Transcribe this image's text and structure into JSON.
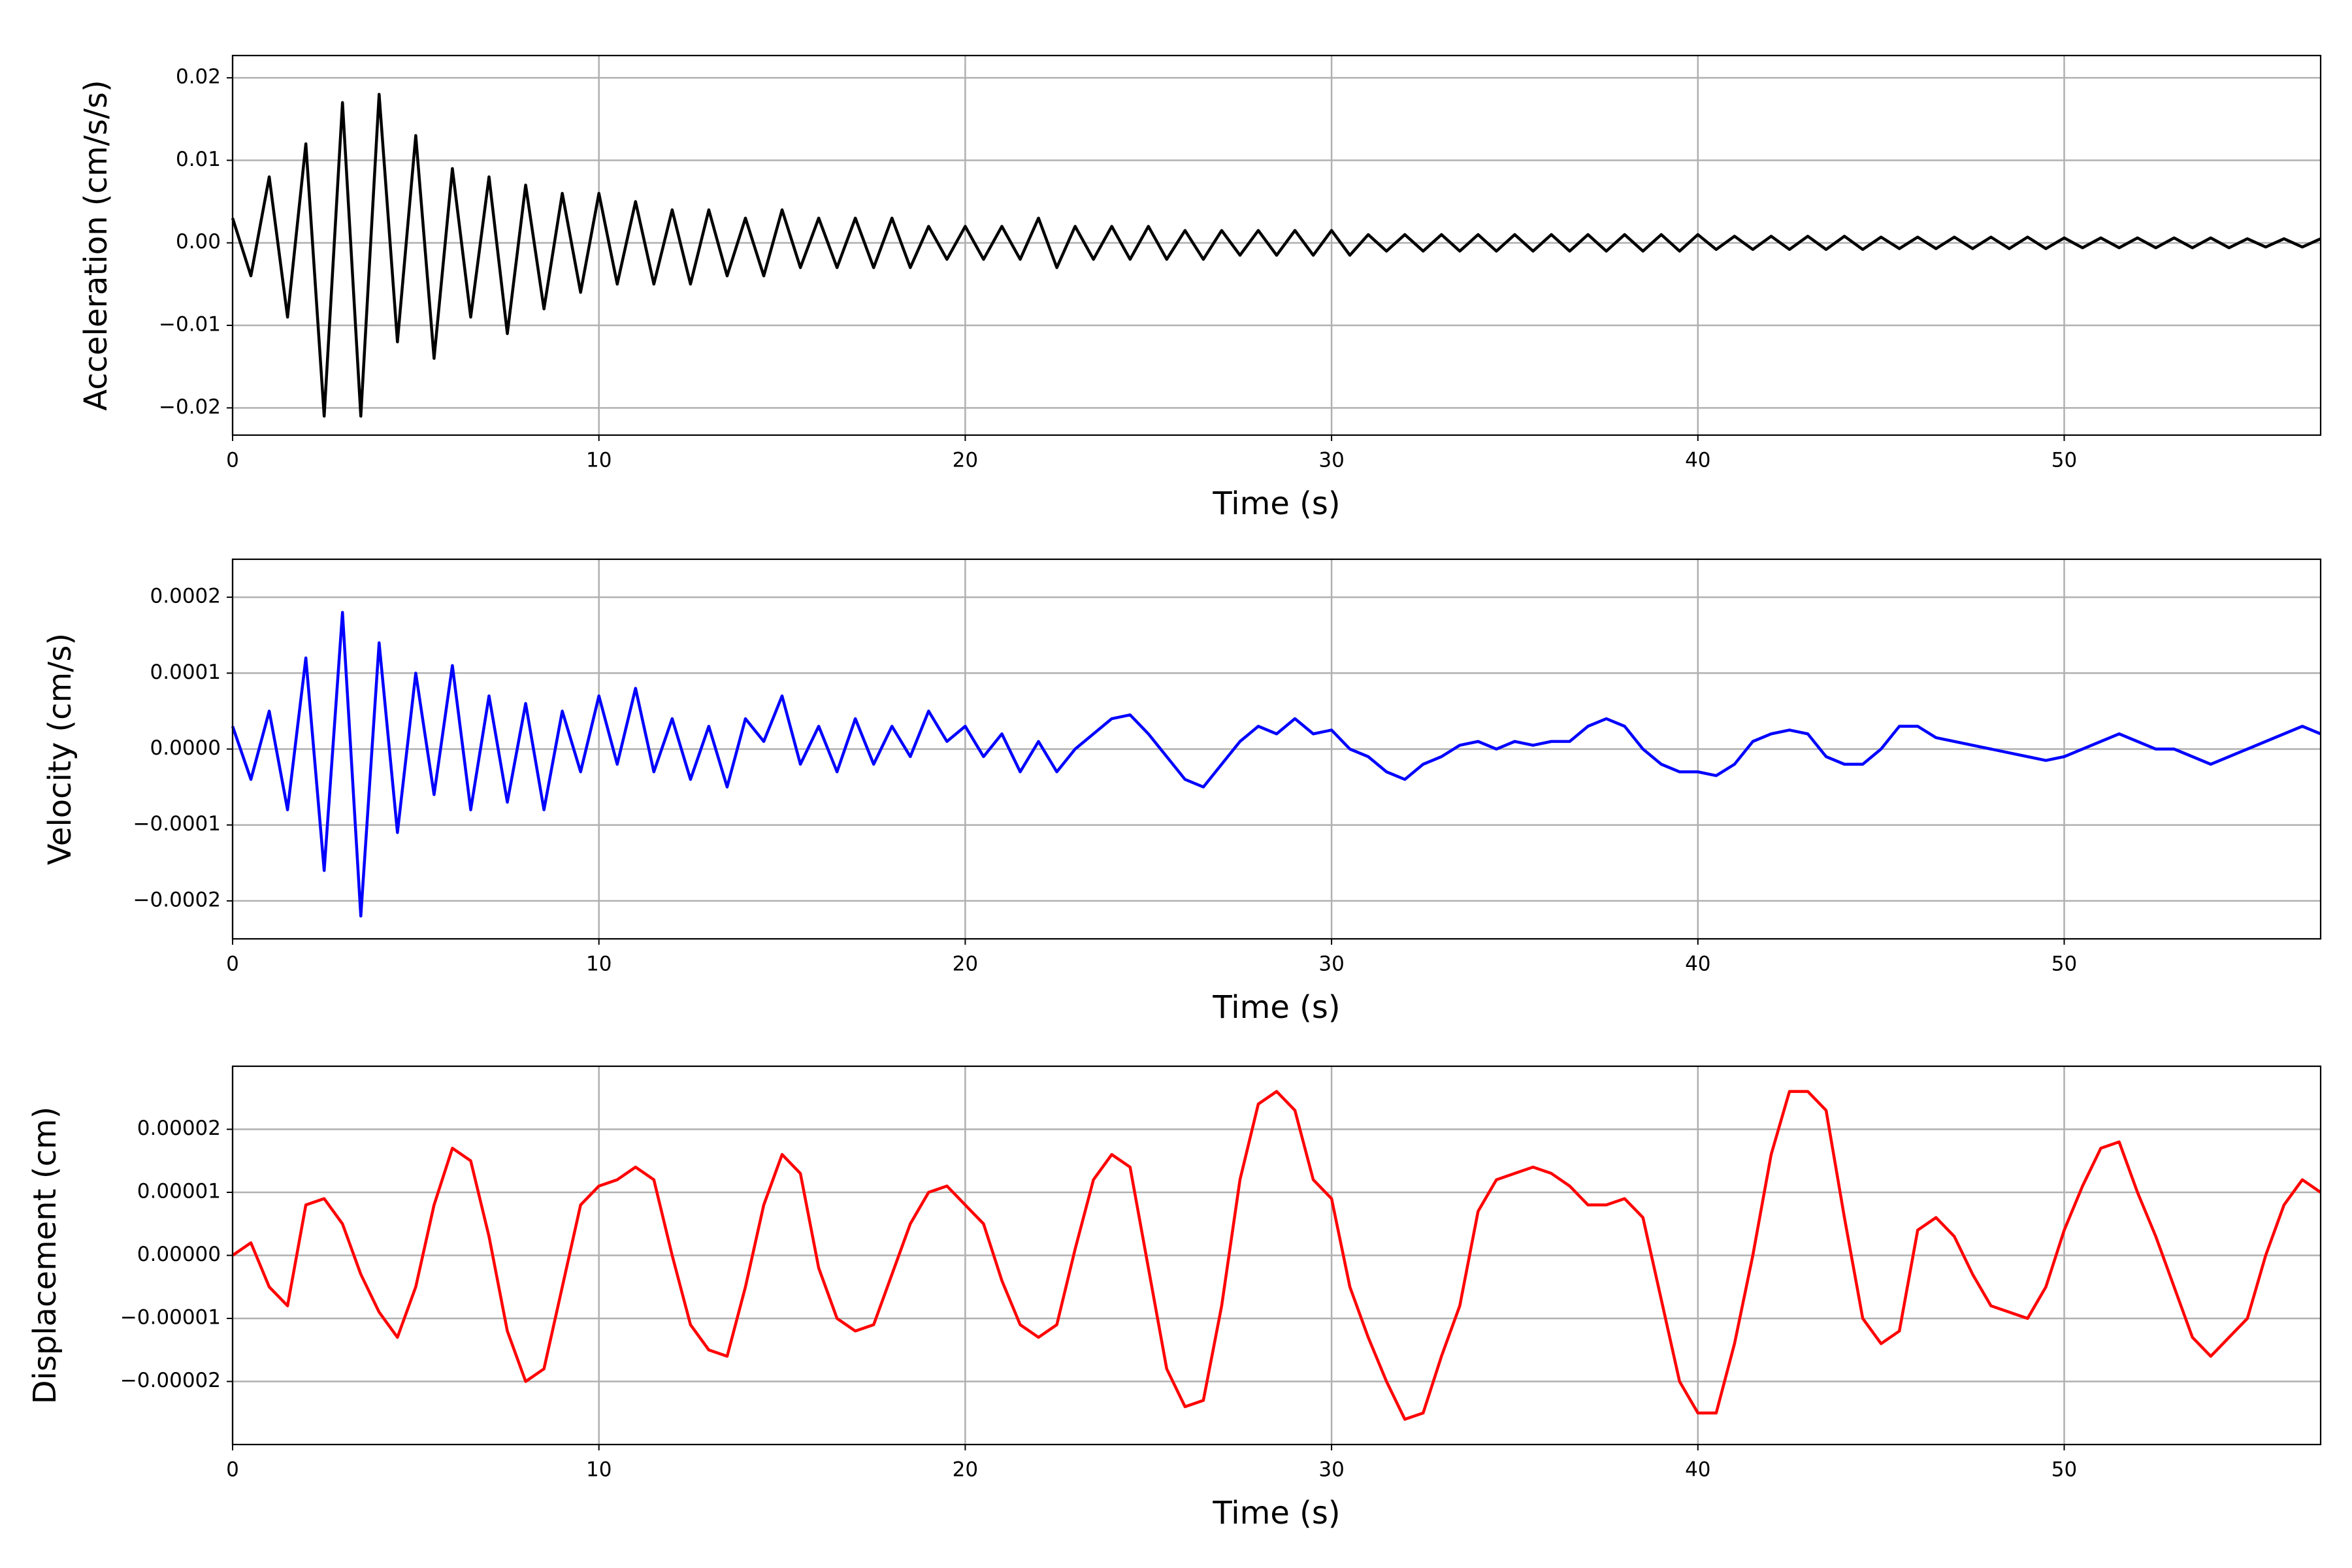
{
  "chart_data": [
    {
      "type": "line",
      "xlabel": "Time (s)",
      "ylabel": "Acceleration (cm/s/s)",
      "color": "#000000",
      "grid": true,
      "xlim": [
        0,
        57
      ],
      "xticks": [
        0,
        10,
        20,
        30,
        40,
        50
      ],
      "ylim": [
        -0.0233,
        0.0227
      ],
      "yticks": [
        {
          "value": -0.02,
          "label": "−0.02"
        },
        {
          "value": -0.01,
          "label": "−0.01"
        },
        {
          "value": 0,
          "label": "0.00"
        },
        0.01,
        0.02
      ],
      "x": [
        0,
        0.5,
        1,
        1.5,
        2,
        2.5,
        3,
        3.5,
        4,
        4.5,
        5,
        5.5,
        6,
        6.5,
        7,
        7.5,
        8,
        8.5,
        9,
        9.5,
        10,
        10.5,
        11,
        11.5,
        12,
        12.5,
        13,
        13.5,
        14,
        14.5,
        15,
        15.5,
        16,
        16.5,
        17,
        17.5,
        18,
        18.5,
        19,
        19.5,
        20,
        20.5,
        21,
        21.5,
        22,
        22.5,
        23,
        23.5,
        24,
        24.5,
        25,
        25.5,
        26,
        26.5,
        27,
        27.5,
        28,
        28.5,
        29,
        29.5,
        30,
        30.5,
        31,
        31.5,
        32,
        32.5,
        33,
        33.5,
        34,
        34.5,
        35,
        35.5,
        36,
        36.5,
        37,
        37.5,
        38,
        38.5,
        39,
        39.5,
        40,
        40.5,
        41,
        41.5,
        42,
        42.5,
        43,
        43.5,
        44,
        44.5,
        45,
        45.5,
        46,
        46.5,
        47,
        47.5,
        48,
        48.5,
        49,
        49.5,
        50,
        50.5,
        51,
        51.5,
        52,
        52.5,
        53,
        53.5,
        54,
        54.5,
        55,
        55.5,
        56,
        56.5,
        57
      ],
      "values": [
        0.003,
        -0.004,
        0.008,
        -0.009,
        0.012,
        -0.021,
        0.017,
        -0.021,
        0.018,
        -0.012,
        0.013,
        -0.014,
        0.009,
        -0.009,
        0.008,
        -0.011,
        0.007,
        -0.008,
        0.006,
        -0.006,
        0.006,
        -0.005,
        0.005,
        -0.005,
        0.004,
        -0.005,
        0.004,
        -0.004,
        0.003,
        -0.004,
        0.004,
        -0.003,
        0.003,
        -0.003,
        0.003,
        -0.003,
        0.003,
        -0.003,
        0.002,
        -0.002,
        0.002,
        -0.002,
        0.002,
        -0.002,
        0.003,
        -0.003,
        0.002,
        -0.002,
        0.002,
        -0.002,
        0.002,
        -0.002,
        0.0015,
        -0.002,
        0.0015,
        -0.0015,
        0.0015,
        -0.0015,
        0.0015,
        -0.0015,
        0.0015,
        -0.0015,
        0.001,
        -0.001,
        0.001,
        -0.001,
        0.001,
        -0.001,
        0.001,
        -0.001,
        0.001,
        -0.001,
        0.001,
        -0.001,
        0.001,
        -0.001,
        0.001,
        -0.001,
        0.001,
        -0.001,
        0.001,
        -0.0008,
        0.0008,
        -0.0008,
        0.0008,
        -0.0008,
        0.0008,
        -0.0008,
        0.0008,
        -0.0008,
        0.0007,
        -0.0007,
        0.0007,
        -0.0007,
        0.0007,
        -0.0007,
        0.0007,
        -0.0007,
        0.0007,
        -0.0007,
        0.0006,
        -0.0006,
        0.0006,
        -0.0006,
        0.0006,
        -0.0006,
        0.0006,
        -0.0006,
        0.0006,
        -0.0006,
        0.0005,
        -0.0005,
        0.0005,
        -0.0005,
        0.0005
      ]
    },
    {
      "type": "line",
      "xlabel": "Time (s)",
      "ylabel": "Velocity (cm/s)",
      "color": "#0000ff",
      "grid": true,
      "xlim": [
        0,
        57
      ],
      "xticks": [
        0,
        10,
        20,
        30,
        40,
        50
      ],
      "ylim": [
        -0.00025,
        0.00025
      ],
      "yticks": [
        {
          "value": -0.0002,
          "label": "−0.0002"
        },
        {
          "value": -0.0001,
          "label": "−0.0001"
        },
        {
          "value": 0,
          "label": "0.0000"
        },
        0.0001,
        0.0002
      ],
      "x": [
        0,
        0.5,
        1,
        1.5,
        2,
        2.5,
        3,
        3.5,
        4,
        4.5,
        5,
        5.5,
        6,
        6.5,
        7,
        7.5,
        8,
        8.5,
        9,
        9.5,
        10,
        10.5,
        11,
        11.5,
        12,
        12.5,
        13,
        13.5,
        14,
        14.5,
        15,
        15.5,
        16,
        16.5,
        17,
        17.5,
        18,
        18.5,
        19,
        19.5,
        20,
        20.5,
        21,
        21.5,
        22,
        22.5,
        23,
        23.5,
        24,
        24.5,
        25,
        25.5,
        26,
        26.5,
        27,
        27.5,
        28,
        28.5,
        29,
        29.5,
        30,
        30.5,
        31,
        31.5,
        32,
        32.5,
        33,
        33.5,
        34,
        34.5,
        35,
        35.5,
        36,
        36.5,
        37,
        37.5,
        38,
        38.5,
        39,
        39.5,
        40,
        40.5,
        41,
        41.5,
        42,
        42.5,
        43,
        43.5,
        44,
        44.5,
        45,
        45.5,
        46,
        46.5,
        47,
        47.5,
        48,
        48.5,
        49,
        49.5,
        50,
        50.5,
        51,
        51.5,
        52,
        52.5,
        53,
        53.5,
        54,
        54.5,
        55,
        55.5,
        56,
        56.5,
        57
      ],
      "values": [
        3e-05,
        -4e-05,
        5e-05,
        -8e-05,
        0.00012,
        -0.00016,
        0.00018,
        -0.00022,
        0.00014,
        -0.00011,
        0.0001,
        -6e-05,
        0.00011,
        -8e-05,
        7e-05,
        -7e-05,
        6e-05,
        -8e-05,
        5e-05,
        -3e-05,
        7e-05,
        -2e-05,
        8e-05,
        -3e-05,
        4e-05,
        -4e-05,
        3e-05,
        -5e-05,
        4e-05,
        1e-05,
        7e-05,
        -2e-05,
        3e-05,
        -3e-05,
        4e-05,
        -2e-05,
        3e-05,
        -1e-05,
        5e-05,
        1e-05,
        3e-05,
        -1e-05,
        2e-05,
        -3e-05,
        1e-05,
        -3e-05,
        0,
        2e-05,
        4e-05,
        4.5e-05,
        2e-05,
        -1e-05,
        -4e-05,
        -5e-05,
        -2e-05,
        1e-05,
        3e-05,
        2e-05,
        4e-05,
        2e-05,
        2.5e-05,
        0,
        -1e-05,
        -3e-05,
        -4e-05,
        -2e-05,
        -1e-05,
        5e-06,
        1e-05,
        0,
        1e-05,
        5e-06,
        1e-05,
        1e-05,
        3e-05,
        4e-05,
        3e-05,
        0,
        -2e-05,
        -3e-05,
        -3e-05,
        -3.5e-05,
        -2e-05,
        1e-05,
        2e-05,
        2.5e-05,
        2e-05,
        -1e-05,
        -2e-05,
        -2e-05,
        0,
        3e-05,
        3e-05,
        1.5e-05,
        1e-05,
        5e-06,
        0,
        -5e-06,
        -1e-05,
        -1.5e-05,
        -1e-05,
        0,
        1e-05,
        2e-05,
        1e-05,
        0,
        0,
        -1e-05,
        -2e-05,
        -1e-05,
        0,
        1e-05,
        2e-05,
        3e-05,
        2e-05
      ]
    },
    {
      "type": "line",
      "xlabel": "Time (s)",
      "ylabel": "Displacement (cm)",
      "color": "#ff0000",
      "grid": true,
      "xlim": [
        0,
        57
      ],
      "xticks": [
        0,
        10,
        20,
        30,
        40,
        50
      ],
      "ylim": [
        -3e-05,
        3e-05
      ],
      "yticks": [
        {
          "value": -2e-05,
          "label": "−0.00002"
        },
        {
          "value": -1e-05,
          "label": "−0.00001"
        },
        {
          "value": 0,
          "label": "0.00000"
        },
        1e-05,
        2e-05
      ],
      "x": [
        0,
        0.5,
        1,
        1.5,
        2,
        2.5,
        3,
        3.5,
        4,
        4.5,
        5,
        5.5,
        6,
        6.5,
        7,
        7.5,
        8,
        8.5,
        9,
        9.5,
        10,
        10.5,
        11,
        11.5,
        12,
        12.5,
        13,
        13.5,
        14,
        14.5,
        15,
        15.5,
        16,
        16.5,
        17,
        17.5,
        18,
        18.5,
        19,
        19.5,
        20,
        20.5,
        21,
        21.5,
        22,
        22.5,
        23,
        23.5,
        24,
        24.5,
        25,
        25.5,
        26,
        26.5,
        27,
        27.5,
        28,
        28.5,
        29,
        29.5,
        30,
        30.5,
        31,
        31.5,
        32,
        32.5,
        33,
        33.5,
        34,
        34.5,
        35,
        35.5,
        36,
        36.5,
        37,
        37.5,
        38,
        38.5,
        39,
        39.5,
        40,
        40.5,
        41,
        41.5,
        42,
        42.5,
        43,
        43.5,
        44,
        44.5,
        45,
        45.5,
        46,
        46.5,
        47,
        47.5,
        48,
        48.5,
        49,
        49.5,
        50,
        50.5,
        51,
        51.5,
        52,
        52.5,
        53,
        53.5,
        54,
        54.5,
        55,
        55.5,
        56,
        56.5,
        57
      ],
      "values": [
        0,
        2e-06,
        -5e-06,
        -8e-06,
        8e-06,
        9e-06,
        5e-06,
        -3e-06,
        -9e-06,
        -1.3e-05,
        -5e-06,
        8e-06,
        1.7e-05,
        1.5e-05,
        3e-06,
        -1.2e-05,
        -2e-05,
        -1.8e-05,
        -5e-06,
        8e-06,
        1.1e-05,
        1.2e-05,
        1.4e-05,
        1.2e-05,
        0,
        -1.1e-05,
        -1.5e-05,
        -1.6e-05,
        -5e-06,
        8e-06,
        1.6e-05,
        1.3e-05,
        -2e-06,
        -1e-05,
        -1.2e-05,
        -1.1e-05,
        -3e-06,
        5e-06,
        1e-05,
        1.1e-05,
        8e-06,
        5e-06,
        -4e-06,
        -1.1e-05,
        -1.3e-05,
        -1.1e-05,
        1e-06,
        1.2e-05,
        1.6e-05,
        1.4e-05,
        -2e-06,
        -1.8e-05,
        -2.4e-05,
        -2.3e-05,
        -8e-06,
        1.2e-05,
        2.4e-05,
        2.6e-05,
        2.3e-05,
        1.2e-05,
        9e-06,
        -5e-06,
        -1.3e-05,
        -2e-05,
        -2.6e-05,
        -2.5e-05,
        -1.6e-05,
        -8e-06,
        7e-06,
        1.2e-05,
        1.3e-05,
        1.4e-05,
        1.3e-05,
        1.1e-05,
        8e-06,
        8e-06,
        9e-06,
        6e-06,
        -7e-06,
        -2e-05,
        -2.5e-05,
        -2.5e-05,
        -1.4e-05,
        0,
        1.6e-05,
        2.6e-05,
        2.6e-05,
        2.3e-05,
        6e-06,
        -1e-05,
        -1.4e-05,
        -1.2e-05,
        4e-06,
        6e-06,
        3e-06,
        -3e-06,
        -8e-06,
        -9e-06,
        -1e-05,
        -5e-06,
        4e-06,
        1.1e-05,
        1.7e-05,
        1.8e-05,
        1e-05,
        3e-06,
        -5e-06,
        -1.3e-05,
        -1.6e-05,
        -1.3e-05,
        -1e-05,
        0,
        8e-06,
        1.2e-05,
        1e-05
      ]
    }
  ]
}
